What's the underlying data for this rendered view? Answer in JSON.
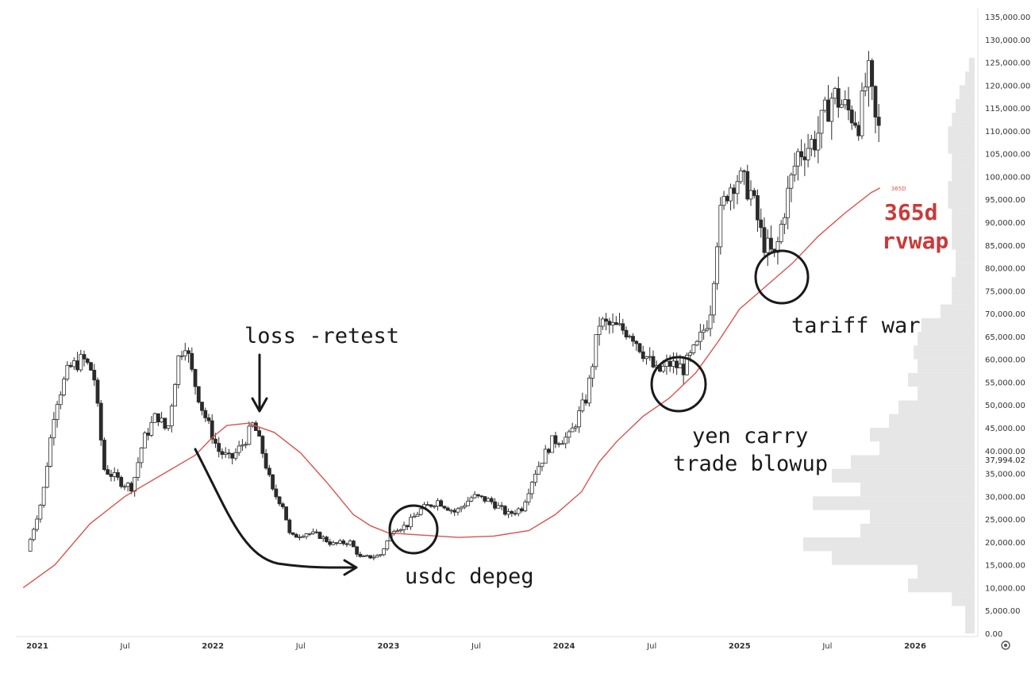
{
  "chart_data": {
    "type": "candlestick",
    "title": "",
    "xlabel": "",
    "ylabel": "",
    "ylim": [
      0,
      135000
    ],
    "y_ticks": [
      "135,000.00",
      "130,000.00",
      "125,000.00",
      "120,000.00",
      "115,000.00",
      "110,000.00",
      "105,000.00",
      "100,000.00",
      "95,000.00",
      "90,000.00",
      "85,000.00",
      "80,000.00",
      "75,000.00",
      "70,000.00",
      "65,000.00",
      "60,000.00",
      "55,000.00",
      "50,000.00",
      "45,000.00",
      "40,000.00",
      "35,000.00",
      "30,000.00",
      "25,000.00",
      "20,000.00",
      "15,000.00",
      "10,000.00",
      "5,000.00",
      "0.00"
    ],
    "x_ticks": [
      {
        "label": "2021",
        "t": 2021.0,
        "major": true
      },
      {
        "label": "Jul",
        "t": 2021.5,
        "major": false
      },
      {
        "label": "2022",
        "t": 2022.0,
        "major": true
      },
      {
        "label": "Jul",
        "t": 2022.5,
        "major": false
      },
      {
        "label": "2023",
        "t": 2023.0,
        "major": true
      },
      {
        "label": "Jul",
        "t": 2023.5,
        "major": false
      },
      {
        "label": "2024",
        "t": 2024.0,
        "major": true
      },
      {
        "label": "Jul",
        "t": 2024.5,
        "major": false
      },
      {
        "label": "2025",
        "t": 2025.0,
        "major": true
      },
      {
        "label": "Jul",
        "t": 2025.5,
        "major": false
      },
      {
        "label": "2026",
        "t": 2026.0,
        "major": true
      }
    ],
    "xlim": [
      2020.92,
      2026.5
    ],
    "current_price_label": "37,994.02",
    "current_price": 37994.02,
    "price_anchors": [
      [
        2020.96,
        18000
      ],
      [
        2021.05,
        30000
      ],
      [
        2021.12,
        50000
      ],
      [
        2021.2,
        58000
      ],
      [
        2021.28,
        60000
      ],
      [
        2021.34,
        57000
      ],
      [
        2021.4,
        36000
      ],
      [
        2021.5,
        33000
      ],
      [
        2021.56,
        32000
      ],
      [
        2021.62,
        42000
      ],
      [
        2021.7,
        48000
      ],
      [
        2021.76,
        44000
      ],
      [
        2021.82,
        60000
      ],
      [
        2021.86,
        64000
      ],
      [
        2021.9,
        57000
      ],
      [
        2021.96,
        49000
      ],
      [
        2022.05,
        40000
      ],
      [
        2022.12,
        38000
      ],
      [
        2022.2,
        42000
      ],
      [
        2022.25,
        46000
      ],
      [
        2022.3,
        40000
      ],
      [
        2022.36,
        31000
      ],
      [
        2022.42,
        28000
      ],
      [
        2022.46,
        21000
      ],
      [
        2022.55,
        22000
      ],
      [
        2022.62,
        21500
      ],
      [
        2022.7,
        19500
      ],
      [
        2022.8,
        20000
      ],
      [
        2022.86,
        16500
      ],
      [
        2022.97,
        17000
      ],
      [
        2023.05,
        23000
      ],
      [
        2023.12,
        23500
      ],
      [
        2023.2,
        27000
      ],
      [
        2023.3,
        29000
      ],
      [
        2023.4,
        26500
      ],
      [
        2023.5,
        30000
      ],
      [
        2023.6,
        29000
      ],
      [
        2023.7,
        26000
      ],
      [
        2023.78,
        27500
      ],
      [
        2023.85,
        35000
      ],
      [
        2023.95,
        42000
      ],
      [
        2024.05,
        43000
      ],
      [
        2024.15,
        52000
      ],
      [
        2024.22,
        68000
      ],
      [
        2024.3,
        67000
      ],
      [
        2024.4,
        66000
      ],
      [
        2024.48,
        61000
      ],
      [
        2024.55,
        57000
      ],
      [
        2024.62,
        59000
      ],
      [
        2024.7,
        58000
      ],
      [
        2024.78,
        63000
      ],
      [
        2024.85,
        70000
      ],
      [
        2024.9,
        90000
      ],
      [
        2024.95,
        97000
      ],
      [
        2025.0,
        100000
      ],
      [
        2025.08,
        97000
      ],
      [
        2025.15,
        86000
      ],
      [
        2025.22,
        82000
      ],
      [
        2025.28,
        94000
      ],
      [
        2025.35,
        105000
      ],
      [
        2025.45,
        108000
      ],
      [
        2025.55,
        118000
      ],
      [
        2025.62,
        115000
      ],
      [
        2025.7,
        112000
      ],
      [
        2025.75,
        123000
      ],
      [
        2025.8,
        110000
      ]
    ],
    "series": [
      {
        "name": "365D",
        "color": "#d9534f",
        "points": [
          [
            2020.92,
            10000
          ],
          [
            2021.1,
            15000
          ],
          [
            2021.3,
            24000
          ],
          [
            2021.5,
            30000
          ],
          [
            2021.7,
            34500
          ],
          [
            2021.9,
            39000
          ],
          [
            2022.0,
            43000
          ],
          [
            2022.08,
            45500
          ],
          [
            2022.2,
            46000
          ],
          [
            2022.35,
            44000
          ],
          [
            2022.5,
            39500
          ],
          [
            2022.65,
            33000
          ],
          [
            2022.8,
            26000
          ],
          [
            2022.9,
            23500
          ],
          [
            2023.0,
            22000
          ],
          [
            2023.2,
            21500
          ],
          [
            2023.4,
            21000
          ],
          [
            2023.6,
            21300
          ],
          [
            2023.8,
            22500
          ],
          [
            2023.95,
            26000
          ],
          [
            2024.1,
            31000
          ],
          [
            2024.2,
            37500
          ],
          [
            2024.3,
            42000
          ],
          [
            2024.45,
            47500
          ],
          [
            2024.6,
            51500
          ],
          [
            2024.75,
            57000
          ],
          [
            2024.88,
            64000
          ],
          [
            2025.0,
            71000
          ],
          [
            2025.15,
            76000
          ],
          [
            2025.3,
            81000
          ],
          [
            2025.45,
            87000
          ],
          [
            2025.6,
            92000
          ],
          [
            2025.75,
            96500
          ],
          [
            2025.8,
            97500
          ]
        ]
      }
    ],
    "series_label": "365D",
    "annotations": [
      {
        "id": "loss",
        "text": "loss -retest"
      },
      {
        "id": "usdc",
        "text": "usdc depeg"
      },
      {
        "id": "yen1",
        "text": "yen carry"
      },
      {
        "id": "yen2",
        "text": "trade blowup"
      },
      {
        "id": "tariff",
        "text": "tariff war"
      },
      {
        "id": "rv1",
        "text": "365d"
      },
      {
        "id": "rv2",
        "text": "rvwap"
      }
    ],
    "colors": {
      "up_candle": "#ffffff",
      "down_candle": "#2b2b2b",
      "annotation_ink": "#1a1a1a",
      "vwap": "#d9534f",
      "volume_profile": "#e6e6e6",
      "axis_text": "#333333"
    },
    "volume_profile": [
      [
        1500,
        0.05
      ],
      [
        4500,
        0.05
      ],
      [
        7500,
        0.12
      ],
      [
        10500,
        0.35
      ],
      [
        13500,
        0.3
      ],
      [
        16500,
        0.75
      ],
      [
        19500,
        0.9
      ],
      [
        22500,
        0.6
      ],
      [
        25500,
        0.55
      ],
      [
        28500,
        0.85
      ],
      [
        31500,
        0.6
      ],
      [
        34500,
        0.75
      ],
      [
        37500,
        0.65
      ],
      [
        40500,
        0.5
      ],
      [
        43500,
        0.55
      ],
      [
        46500,
        0.45
      ],
      [
        49500,
        0.4
      ],
      [
        52500,
        0.3
      ],
      [
        55500,
        0.35
      ],
      [
        58500,
        0.3
      ],
      [
        61500,
        0.32
      ],
      [
        64500,
        0.3
      ],
      [
        67500,
        0.28
      ],
      [
        70500,
        0.18
      ],
      [
        73500,
        0.12
      ],
      [
        76500,
        0.12
      ],
      [
        79500,
        0.1
      ],
      [
        82500,
        0.1
      ],
      [
        85500,
        0.12
      ],
      [
        88500,
        0.12
      ],
      [
        91500,
        0.12
      ],
      [
        94500,
        0.14
      ],
      [
        97500,
        0.14
      ],
      [
        100500,
        0.12
      ],
      [
        103500,
        0.12
      ],
      [
        106500,
        0.14
      ],
      [
        109500,
        0.14
      ],
      [
        112500,
        0.12
      ],
      [
        115500,
        0.1
      ],
      [
        118500,
        0.08
      ],
      [
        121500,
        0.05
      ],
      [
        124500,
        0.03
      ]
    ]
  },
  "ui": {
    "settings_icon": "settings-gear-icon"
  }
}
